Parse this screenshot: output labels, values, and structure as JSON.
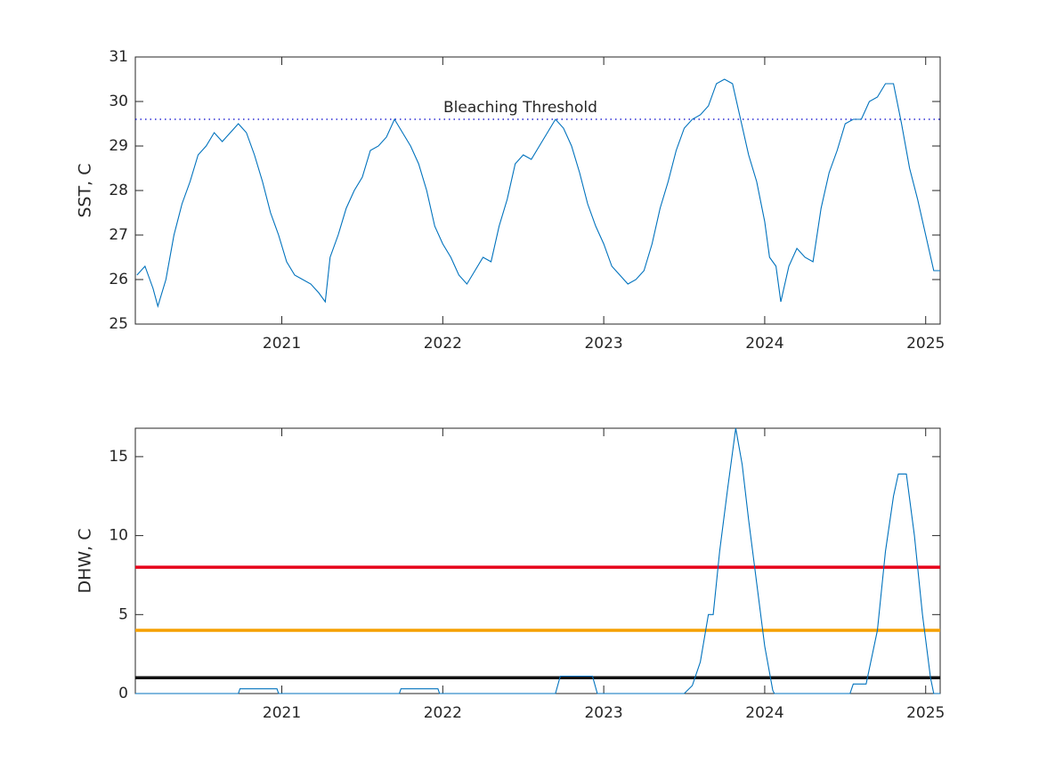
{
  "chart_data": [
    {
      "type": "line",
      "ylabel": "SST, C",
      "xlim": [
        2020.09,
        2025.09
      ],
      "ylim": [
        25,
        31
      ],
      "xticks": [
        2021,
        2022,
        2023,
        2024,
        2025
      ],
      "yticks": [
        25,
        26,
        27,
        28,
        29,
        30,
        31
      ],
      "x": [
        2020.1,
        2020.15,
        2020.2,
        2020.23,
        2020.28,
        2020.33,
        2020.38,
        2020.43,
        2020.48,
        2020.53,
        2020.58,
        2020.63,
        2020.68,
        2020.73,
        2020.78,
        2020.83,
        2020.88,
        2020.93,
        2020.98,
        2021.03,
        2021.08,
        2021.13,
        2021.18,
        2021.23,
        2021.27,
        2021.3,
        2021.35,
        2021.4,
        2021.45,
        2021.5,
        2021.55,
        2021.6,
        2021.65,
        2021.7,
        2021.75,
        2021.8,
        2021.85,
        2021.9,
        2021.95,
        2022.0,
        2022.05,
        2022.1,
        2022.15,
        2022.2,
        2022.25,
        2022.3,
        2022.35,
        2022.4,
        2022.45,
        2022.5,
        2022.55,
        2022.6,
        2022.65,
        2022.7,
        2022.75,
        2022.8,
        2022.85,
        2022.9,
        2022.95,
        2023.0,
        2023.05,
        2023.1,
        2023.15,
        2023.2,
        2023.25,
        2023.3,
        2023.35,
        2023.4,
        2023.45,
        2023.5,
        2023.55,
        2023.6,
        2023.65,
        2023.7,
        2023.75,
        2023.8,
        2023.85,
        2023.9,
        2023.95,
        2024.0,
        2024.03,
        2024.07,
        2024.1,
        2024.15,
        2024.2,
        2024.25,
        2024.3,
        2024.35,
        2024.4,
        2024.45,
        2024.5,
        2024.55,
        2024.6,
        2024.65,
        2024.7,
        2024.75,
        2024.8,
        2024.85,
        2024.9,
        2024.95,
        2025.0,
        2025.05,
        2025.09
      ],
      "series": [
        {
          "color": "#0072bd",
          "values": [
            26.1,
            26.3,
            25.8,
            25.4,
            26.0,
            27.0,
            27.7,
            28.2,
            28.8,
            29.0,
            29.3,
            29.1,
            29.3,
            29.5,
            29.3,
            28.8,
            28.2,
            27.5,
            27.0,
            26.4,
            26.1,
            26.0,
            25.9,
            25.7,
            25.5,
            26.5,
            27.0,
            27.6,
            28.0,
            28.3,
            28.9,
            29.0,
            29.2,
            29.6,
            29.3,
            29.0,
            28.6,
            28.0,
            27.2,
            26.8,
            26.5,
            26.1,
            25.9,
            26.2,
            26.5,
            26.4,
            27.2,
            27.8,
            28.6,
            28.8,
            28.7,
            29.0,
            29.3,
            29.6,
            29.4,
            29.0,
            28.4,
            27.7,
            27.2,
            26.8,
            26.3,
            26.1,
            25.9,
            26.0,
            26.2,
            26.8,
            27.6,
            28.2,
            28.9,
            29.4,
            29.6,
            29.7,
            29.9,
            30.4,
            30.5,
            30.4,
            29.6,
            28.8,
            28.2,
            27.3,
            26.5,
            26.3,
            25.5,
            26.3,
            26.7,
            26.5,
            26.4,
            27.6,
            28.4,
            28.9,
            29.5,
            29.6,
            29.6,
            30.0,
            30.1,
            30.4,
            30.4,
            29.5,
            28.5,
            27.8,
            27.0,
            26.2,
            26.2
          ]
        }
      ],
      "reference_lines": [
        {
          "value": 29.6,
          "color": "#0000cc",
          "style": "dotted",
          "label": "Bleaching Threshold"
        }
      ]
    },
    {
      "type": "line",
      "ylabel": "DHW, C",
      "xlim": [
        2020.09,
        2025.09
      ],
      "ylim": [
        0,
        16.8
      ],
      "xticks": [
        2021,
        2022,
        2023,
        2024,
        2025
      ],
      "yticks": [
        0,
        5,
        10,
        15
      ],
      "x": [
        2020.09,
        2020.73,
        2020.74,
        2020.97,
        2020.98,
        2021.73,
        2021.74,
        2021.97,
        2021.98,
        2022.7,
        2022.73,
        2022.93,
        2022.96,
        2023.5,
        2023.55,
        2023.6,
        2023.65,
        2023.68,
        2023.72,
        2023.77,
        2023.82,
        2023.86,
        2023.9,
        2023.95,
        2024.0,
        2024.05,
        2024.06,
        2024.53,
        2024.55,
        2024.63,
        2024.7,
        2024.75,
        2024.8,
        2024.83,
        2024.88,
        2024.93,
        2024.98,
        2025.03,
        2025.05,
        2025.09
      ],
      "series": [
        {
          "color": "#0072bd",
          "values": [
            0,
            0,
            0.3,
            0.3,
            0,
            0,
            0.3,
            0.3,
            0,
            0,
            1.1,
            1.1,
            0,
            0,
            0.5,
            2.0,
            5.0,
            5.0,
            9,
            13,
            16.8,
            14.5,
            11,
            7,
            3,
            0.2,
            0,
            0,
            0.6,
            0.6,
            4,
            9,
            12.5,
            13.9,
            13.9,
            10,
            5,
            1,
            0,
            0
          ]
        }
      ],
      "reference_lines": [
        {
          "value": 8,
          "color": "#e6001a",
          "style": "solid"
        },
        {
          "value": 4,
          "color": "#f5a000",
          "style": "solid"
        },
        {
          "value": 1,
          "color": "#111111",
          "style": "solid"
        }
      ]
    }
  ]
}
